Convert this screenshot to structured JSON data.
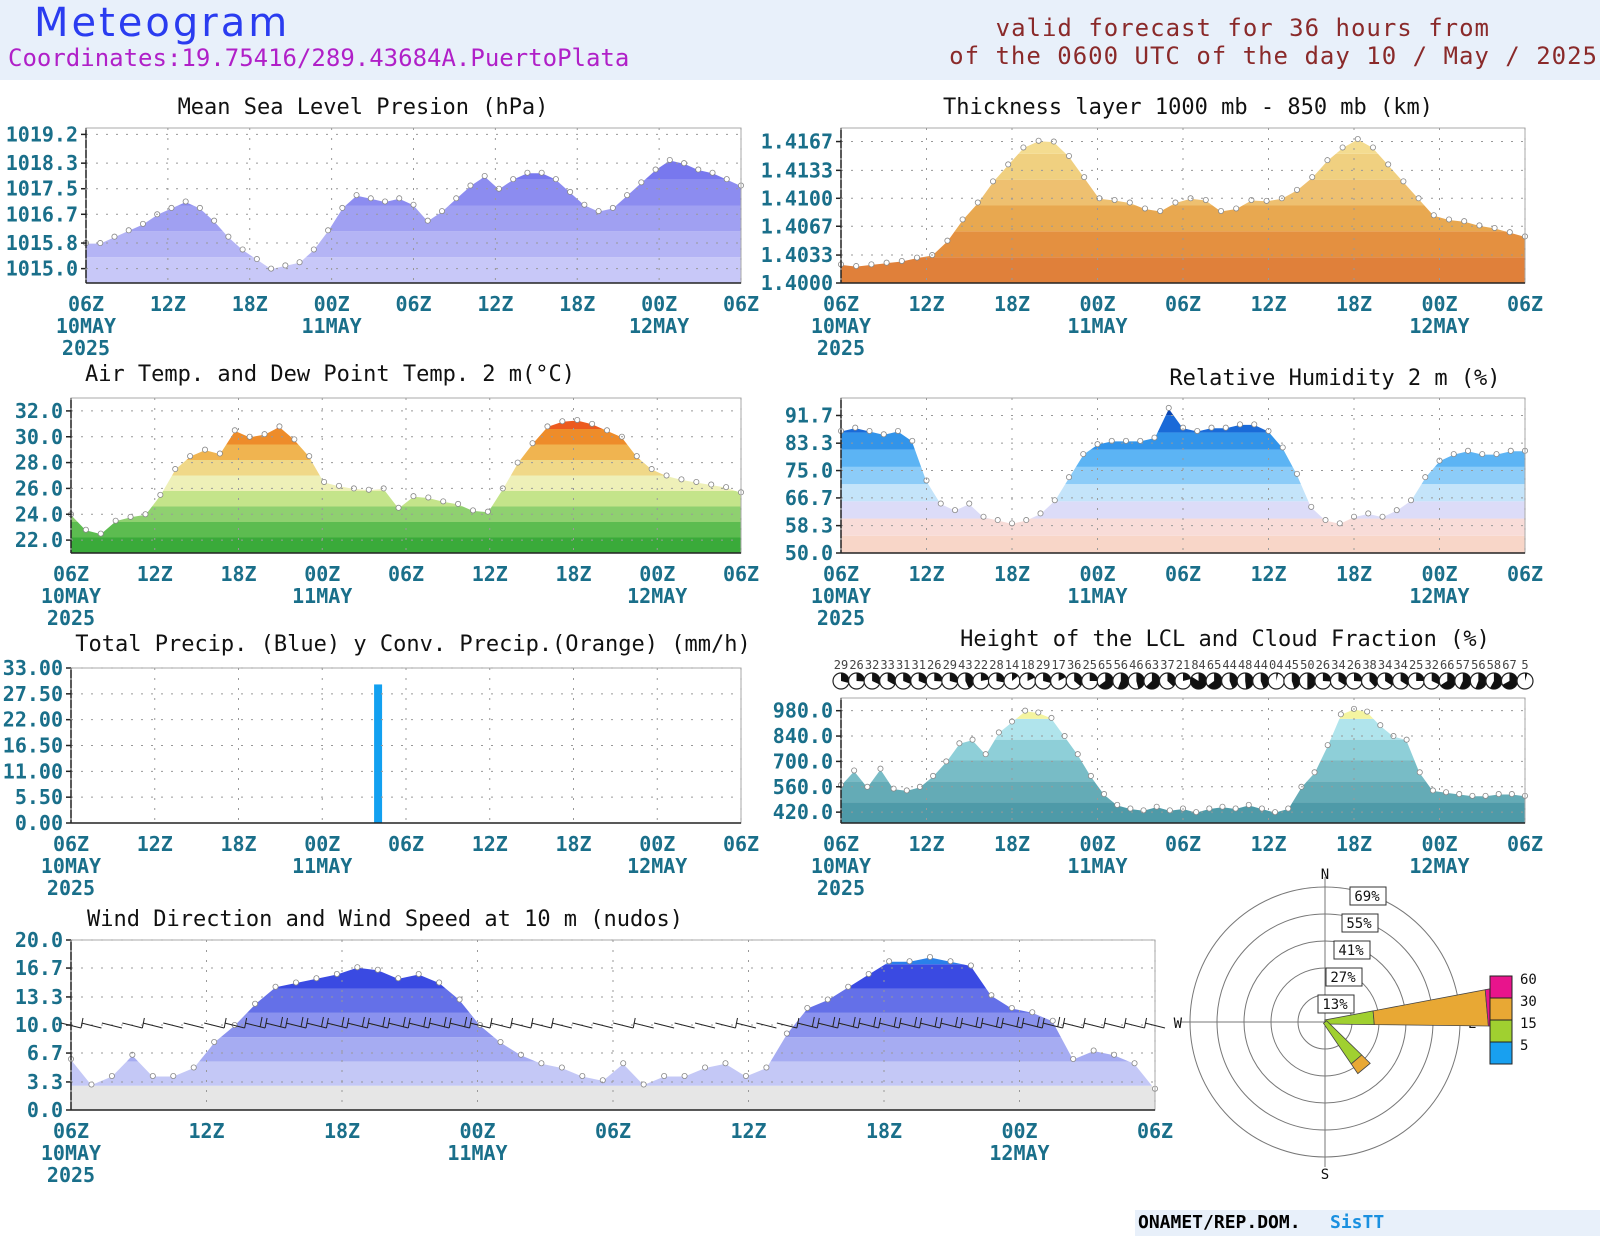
{
  "header": {
    "title": "Meteogram",
    "coordinates": "Coordinates:19.75416/289.43684A.PuertoPlata",
    "valid_line1": "valid forecast for 36 hours from",
    "valid_line2": "of the 0600 UTC of the day 10 / May / 2025"
  },
  "footer": {
    "org": "ONAMET/REP.DOM.",
    "system": "SisTT"
  },
  "chart_data": [
    {
      "id": "mslp",
      "type": "area",
      "title": "Mean Sea Level Presion (hPa)",
      "yticks": [
        "1015.0",
        "1015.8",
        "1016.7",
        "1017.5",
        "1018.3",
        "1019.2"
      ],
      "ylim": [
        1014.55,
        1019.4
      ],
      "values": [
        1015.8,
        1015.8,
        1016.0,
        1016.2,
        1016.4,
        1016.7,
        1016.9,
        1017.1,
        1016.9,
        1016.5,
        1016.0,
        1015.6,
        1015.3,
        1015.0,
        1015.1,
        1015.2,
        1015.6,
        1016.2,
        1016.9,
        1017.3,
        1017.2,
        1017.1,
        1017.2,
        1017.0,
        1016.5,
        1016.8,
        1017.2,
        1017.6,
        1017.9,
        1017.5,
        1017.8,
        1018.0,
        1018.0,
        1017.8,
        1017.4,
        1017.0,
        1016.8,
        1016.9,
        1017.3,
        1017.7,
        1018.1,
        1018.4,
        1018.3,
        1018.1,
        1018.0,
        1017.8,
        1017.6
      ],
      "colors": [
        "#c8c8f8",
        "#b4b4f5",
        "#a0a0f2",
        "#8c8cf0",
        "#7878ee",
        "#6464ea"
      ],
      "time_labels": [
        "06Z",
        "12Z",
        "18Z",
        "00Z",
        "06Z",
        "12Z",
        "18Z",
        "00Z",
        "06Z"
      ],
      "date_labels": [
        {
          "at": 0,
          "text": "10MAY"
        },
        {
          "at": 3,
          "text": "11MAY"
        },
        {
          "at": 7,
          "text": "12MAY"
        }
      ],
      "year_label": "2025"
    },
    {
      "id": "thickness",
      "type": "area",
      "title": "Thickness layer 1000 mb - 850 mb (km)",
      "yticks": [
        "1.4000",
        "1.4033",
        "1.4067",
        "1.4100",
        "1.4133",
        "1.4167"
      ],
      "ylim": [
        1.4,
        1.4183
      ],
      "values": [
        1.4022,
        1.402,
        1.4022,
        1.4024,
        1.4026,
        1.403,
        1.4033,
        1.405,
        1.4075,
        1.4095,
        1.412,
        1.414,
        1.416,
        1.4168,
        1.4167,
        1.415,
        1.4125,
        1.41,
        1.4098,
        1.4095,
        1.4088,
        1.4085,
        1.4095,
        1.41,
        1.4098,
        1.4085,
        1.4088,
        1.4098,
        1.4097,
        1.41,
        1.411,
        1.4125,
        1.4145,
        1.416,
        1.417,
        1.416,
        1.414,
        1.412,
        1.41,
        1.408,
        1.4075,
        1.4073,
        1.4068,
        1.4065,
        1.406,
        1.4055
      ],
      "colors": [
        "#e0803a",
        "#e49040",
        "#e8a850",
        "#eec070",
        "#f0d080",
        "#f4dc90"
      ],
      "time_labels": [
        "06Z",
        "12Z",
        "18Z",
        "00Z",
        "06Z",
        "12Z",
        "18Z",
        "00Z",
        "06Z"
      ],
      "date_labels": [
        {
          "at": 0,
          "text": "10MAY"
        },
        {
          "at": 3,
          "text": "11MAY"
        },
        {
          "at": 7,
          "text": "12MAY"
        }
      ],
      "year_label": "2025"
    },
    {
      "id": "temp",
      "type": "area",
      "title": "Air Temp. and Dew Point Temp. 2 m(°C)",
      "yticks": [
        "22.0",
        "24.0",
        "26.0",
        "28.0",
        "30.0",
        "32.0"
      ],
      "ylim": [
        21.0,
        33.0
      ],
      "values": [
        24.0,
        22.8,
        22.5,
        23.5,
        23.8,
        24.0,
        25.5,
        27.5,
        28.5,
        29.0,
        28.7,
        30.5,
        30.0,
        30.2,
        30.8,
        29.8,
        28.5,
        26.5,
        26.2,
        26.0,
        25.9,
        26.0,
        24.5,
        25.4,
        25.3,
        25.0,
        24.8,
        24.3,
        24.2,
        26.0,
        28.0,
        29.5,
        30.8,
        31.2,
        31.3,
        31.0,
        30.5,
        30.0,
        28.5,
        27.5,
        27.0,
        26.7,
        26.5,
        26.3,
        26.1,
        25.7
      ],
      "colors": [
        "#3aaa3a",
        "#5cbc50",
        "#8fd070",
        "#c4e48a",
        "#eef0b8",
        "#f0d888",
        "#f0b450",
        "#ee8c2a",
        "#ec5a1e",
        "#e62a4a"
      ],
      "time_labels": [
        "06Z",
        "12Z",
        "18Z",
        "00Z",
        "06Z",
        "12Z",
        "18Z",
        "00Z",
        "06Z"
      ],
      "date_labels": [
        {
          "at": 0,
          "text": "10MAY"
        },
        {
          "at": 3,
          "text": "11MAY"
        },
        {
          "at": 7,
          "text": "12MAY"
        }
      ],
      "year_label": "2025"
    },
    {
      "id": "rh",
      "type": "area",
      "title": "Relative Humidity 2 m (%)",
      "yticks": [
        "50.0",
        "58.3",
        "66.7",
        "75.0",
        "83.3",
        "91.7"
      ],
      "ylim": [
        50.0,
        97.0
      ],
      "values": [
        87,
        88,
        87,
        86,
        87,
        84,
        72,
        65,
        63,
        65,
        61,
        60,
        59,
        60,
        62,
        66,
        73,
        80,
        83,
        84,
        84,
        84,
        85,
        94,
        88,
        87,
        88,
        88,
        89,
        89,
        87,
        82,
        74,
        64,
        60,
        59,
        61,
        62,
        61,
        63,
        66,
        73,
        78,
        80,
        81,
        80,
        80,
        81,
        81
      ],
      "colors": [
        "#f8d6c8",
        "#f8dcd8",
        "#dcdcf8",
        "#c4e4fa",
        "#8cccf8",
        "#5cb4f4",
        "#3294ea",
        "#1a6ad8",
        "#0a44b0"
      ],
      "time_labels": [
        "06Z",
        "12Z",
        "18Z",
        "00Z",
        "06Z",
        "12Z",
        "18Z",
        "00Z",
        "06Z"
      ],
      "date_labels": [
        {
          "at": 0,
          "text": "10MAY"
        },
        {
          "at": 3,
          "text": "11MAY"
        },
        {
          "at": 7,
          "text": "12MAY"
        }
      ],
      "year_label": "2025"
    },
    {
      "id": "precip",
      "type": "bar",
      "title": "Total Precip. (Blue) y Conv. Precip.(Orange) (mm/h)",
      "yticks": [
        "0.00",
        "5.50",
        "11.00",
        "16.50",
        "22.00",
        "27.50",
        "33.00"
      ],
      "ylim": [
        0,
        33.0
      ],
      "series": [
        {
          "name": "Total Precip.",
          "color": "#12a0f0",
          "values": [
            {
              "hour": 22,
              "value": 29.5
            }
          ]
        },
        {
          "name": "Conv. Precip.",
          "color": "#f09020",
          "values": []
        }
      ],
      "time_labels": [
        "06Z",
        "12Z",
        "18Z",
        "00Z",
        "06Z",
        "12Z",
        "18Z",
        "00Z",
        "06Z"
      ],
      "date_labels": [
        {
          "at": 0,
          "text": "10MAY"
        },
        {
          "at": 3,
          "text": "11MAY"
        },
        {
          "at": 7,
          "text": "12MAY"
        }
      ],
      "year_label": "2025"
    },
    {
      "id": "lcl",
      "type": "area",
      "title": "Height of the LCL and Cloud Fraction (%)",
      "yticks": [
        "420.0",
        "560.0",
        "700.0",
        "840.0",
        "980.0"
      ],
      "ylim": [
        360,
        1050
      ],
      "values": [
        570,
        650,
        560,
        660,
        550,
        540,
        560,
        620,
        700,
        800,
        820,
        740,
        860,
        920,
        980,
        970,
        940,
        840,
        740,
        620,
        520,
        460,
        440,
        430,
        450,
        430,
        440,
        420,
        440,
        450,
        440,
        460,
        440,
        420,
        440,
        560,
        640,
        790,
        960,
        990,
        975,
        900,
        840,
        820,
        640,
        540,
        530,
        520,
        510,
        510,
        520,
        520,
        510
      ],
      "colors": [
        "#4e9aa8",
        "#64abb6",
        "#78bcc6",
        "#8ecfd8",
        "#b0e4ec",
        "#f4f4a0"
      ],
      "cloud_fraction_labels": [
        "29",
        "26",
        "32",
        "33",
        "31",
        "31",
        "26",
        "29",
        "43",
        "22",
        "28",
        "14",
        "18",
        "29",
        "17",
        "36",
        "25",
        "65",
        "56",
        "46",
        "63",
        "37",
        "21",
        "84",
        "65",
        "44",
        "48",
        "44",
        "04",
        "45",
        "50",
        "26",
        "34",
        "26",
        "38",
        "34",
        "34",
        "25",
        "32",
        "66",
        "57",
        "56",
        "58",
        "67",
        "5"
      ],
      "time_labels": [
        "06Z",
        "12Z",
        "18Z",
        "00Z",
        "06Z",
        "12Z",
        "18Z",
        "00Z",
        "06Z"
      ],
      "date_labels": [
        {
          "at": 0,
          "text": "10MAY"
        },
        {
          "at": 3,
          "text": "11MAY"
        },
        {
          "at": 7,
          "text": "12MAY"
        }
      ],
      "year_label": "2025"
    },
    {
      "id": "wind",
      "type": "area",
      "title": "Wind Direction and Wind Speed at 10 m (nudos)",
      "yticks": [
        "0.0",
        "3.3",
        "6.7",
        "10.0",
        "13.3",
        "16.7",
        "20.0"
      ],
      "ylim": [
        0,
        20.0
      ],
      "values": [
        6.0,
        3.0,
        4.0,
        6.5,
        4.0,
        4.0,
        5.0,
        8.0,
        10.0,
        12.5,
        14.5,
        15.0,
        15.5,
        16.0,
        16.8,
        16.5,
        15.5,
        16.0,
        15.0,
        13.0,
        10.0,
        8.0,
        6.5,
        5.5,
        5.0,
        4.0,
        3.5,
        5.5,
        3.0,
        4.0,
        4.0,
        5.0,
        5.5,
        4.0,
        5.0,
        9.0,
        12.0,
        13.0,
        14.5,
        16.0,
        17.5,
        17.5,
        18.0,
        17.5,
        17.0,
        13.5,
        12.0,
        11.5,
        10.5,
        6.0,
        7.0,
        6.5,
        5.5,
        2.5
      ],
      "colors": [
        "#e6e6e6",
        "#c4c8f6",
        "#a6acf2",
        "#8a92ee",
        "#6470e8",
        "#3a4ae2",
        "#2a80ea"
      ],
      "time_labels": [
        "06Z",
        "12Z",
        "18Z",
        "00Z",
        "06Z",
        "12Z",
        "18Z",
        "00Z",
        "06Z"
      ],
      "date_labels": [
        {
          "at": 0,
          "text": "10MAY"
        },
        {
          "at": 3,
          "text": "11MAY"
        },
        {
          "at": 7,
          "text": "12MAY"
        }
      ],
      "year_label": "2025"
    },
    {
      "id": "windrose",
      "type": "pie",
      "cardinals": {
        "n": "N",
        "s": "S",
        "e": "E",
        "w": "W"
      },
      "ring_labels": [
        "13%",
        "27%",
        "41%",
        "55%",
        "69%"
      ],
      "legend": [
        {
          "label": "60",
          "color": "#e8148c"
        },
        {
          "label": "30",
          "color": "#e8a834"
        },
        {
          "label": "15",
          "color": "#a0d030"
        },
        {
          "label": "5",
          "color": "#18a0f0"
        }
      ],
      "petals": [
        {
          "direction_deg": 85,
          "bands": [
            {
              "color": "#a0d030",
              "pct": 25
            },
            {
              "color": "#e8a834",
              "pct": 58
            },
            {
              "color": "#e8148c",
              "pct": 12
            }
          ]
        },
        {
          "direction_deg": 140,
          "bands": [
            {
              "color": "#a0d030",
              "pct": 25
            },
            {
              "color": "#e8a834",
              "pct": 6
            }
          ]
        }
      ]
    }
  ]
}
